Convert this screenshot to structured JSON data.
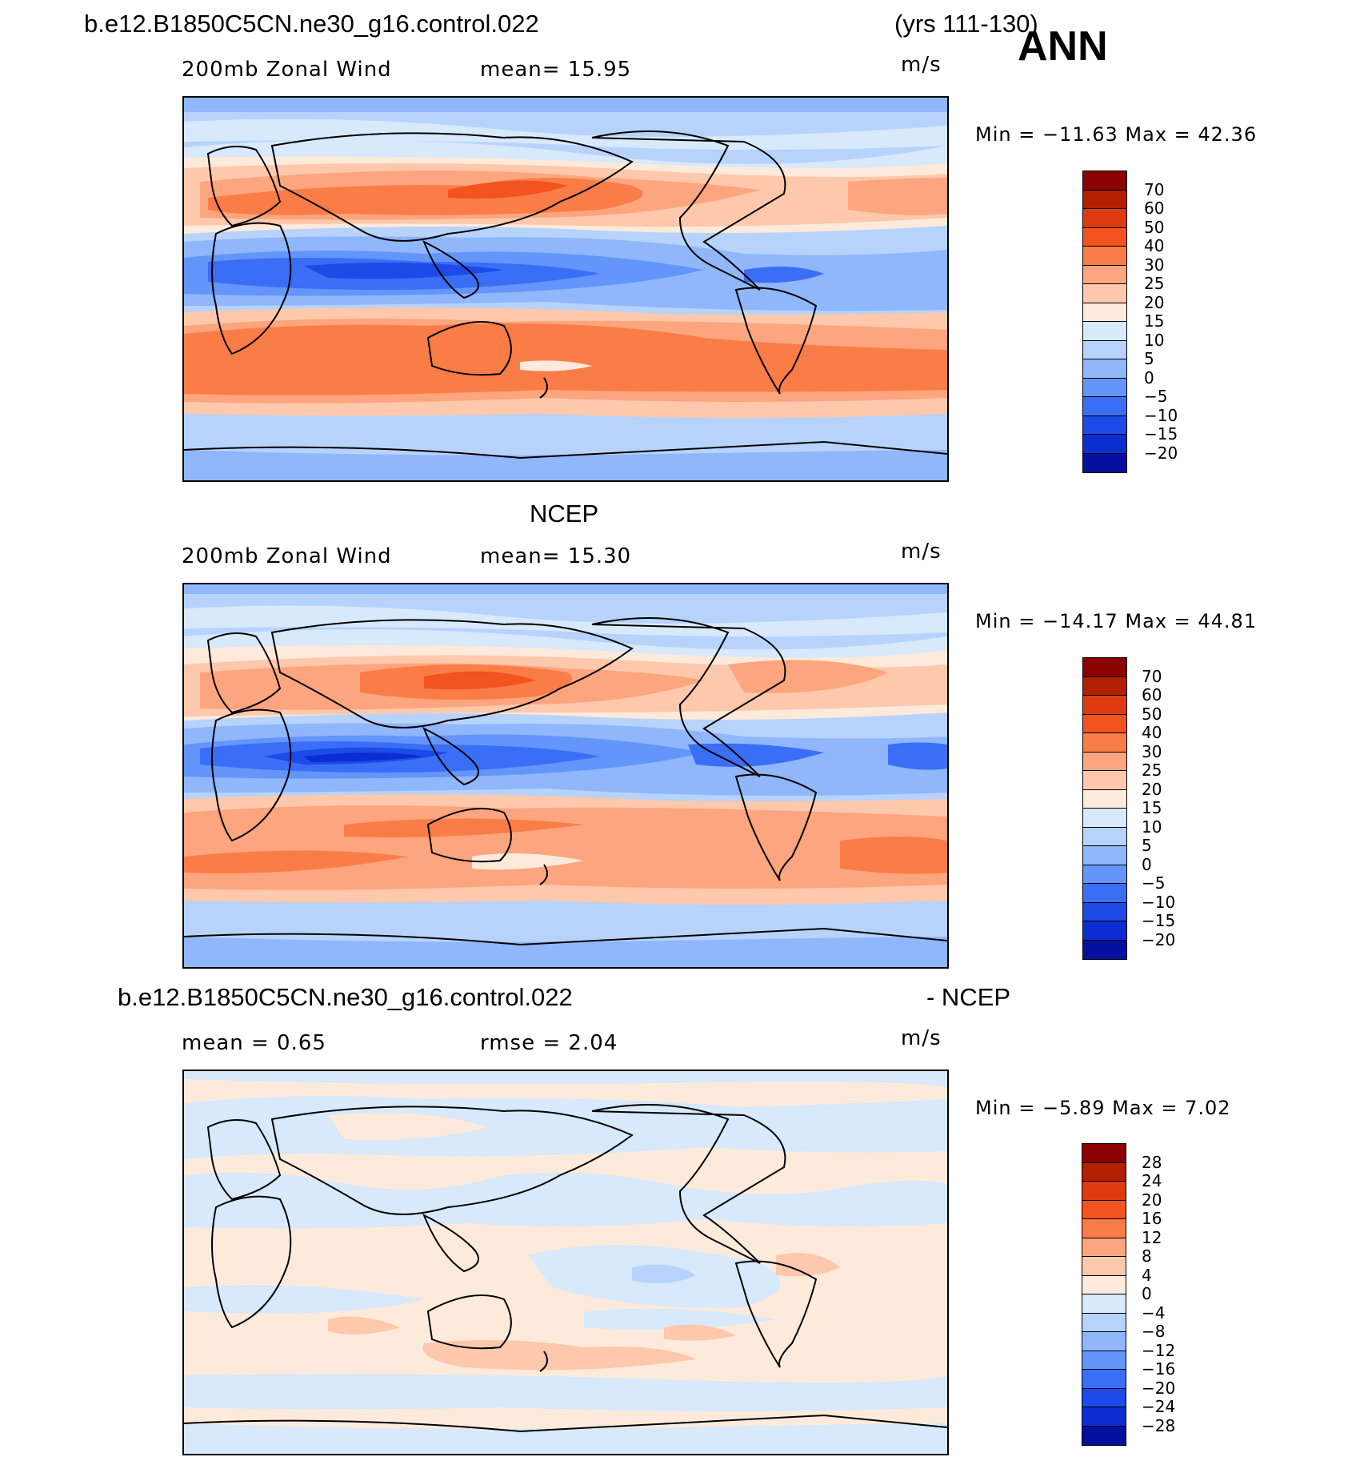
{
  "header": {
    "case_title": "b.e12.B1850C5CN.ne30_g16.control.022",
    "years": "(yrs 111-130)",
    "season": "ANN"
  },
  "panels": [
    {
      "id": "model",
      "title": "",
      "variable": "200mb Zonal Wind",
      "stat1": "mean=   15.95",
      "stat2": "",
      "units": "m/s",
      "minmax": "Min  =  −11.63  Max  =    42.36",
      "levels": [
        "70",
        "60",
        "50",
        "40",
        "30",
        "25",
        "20",
        "15",
        "10",
        "5",
        "0",
        "−5",
        "−10",
        "−15",
        "−20"
      ],
      "colors": [
        "#8b0000",
        "#b22000",
        "#dd3a10",
        "#f2531f",
        "#fa7d48",
        "#fca57e",
        "#fdc8ab",
        "#feeadb",
        "#d7e9fb",
        "#b7d3fb",
        "#90b6fb",
        "#6495fb",
        "#3a6ef6",
        "#1e4ae8",
        "#0c2ed0",
        "#04109e"
      ]
    },
    {
      "id": "obs",
      "title": "NCEP",
      "variable": "200mb Zonal Wind",
      "stat1": "mean=   15.30",
      "stat2": "",
      "units": "m/s",
      "minmax": "Min  =  −14.17  Max  =    44.81",
      "levels": [
        "70",
        "60",
        "50",
        "40",
        "30",
        "25",
        "20",
        "15",
        "10",
        "5",
        "0",
        "−5",
        "−10",
        "−15",
        "−20"
      ],
      "colors": [
        "#8b0000",
        "#b22000",
        "#dd3a10",
        "#f2531f",
        "#fa7d48",
        "#fca57e",
        "#fdc8ab",
        "#feeadb",
        "#d7e9fb",
        "#b7d3fb",
        "#90b6fb",
        "#6495fb",
        "#3a6ef6",
        "#1e4ae8",
        "#0c2ed0",
        "#04109e"
      ]
    },
    {
      "id": "diff",
      "title_left": "b.e12.B1850C5CN.ne30_g16.control.022",
      "title_right": "- NCEP",
      "variable": "",
      "stat1": "mean =     0.65",
      "stat2": "rmse =     2.04",
      "units": "m/s",
      "minmax": "Min  =    −5.89  Max  =     7.02",
      "levels": [
        "28",
        "24",
        "20",
        "16",
        "12",
        "8",
        "4",
        "0",
        "−4",
        "−8",
        "−12",
        "−16",
        "−20",
        "−24",
        "−28"
      ],
      "colors": [
        "#8b0000",
        "#b22000",
        "#dd3a10",
        "#f2531f",
        "#fa7d48",
        "#fca57e",
        "#fdc8ab",
        "#feeadb",
        "#d7e9fb",
        "#b7d3fb",
        "#90b6fb",
        "#6495fb",
        "#3a6ef6",
        "#1e4ae8",
        "#0c2ed0",
        "#04109e"
      ]
    }
  ]
}
